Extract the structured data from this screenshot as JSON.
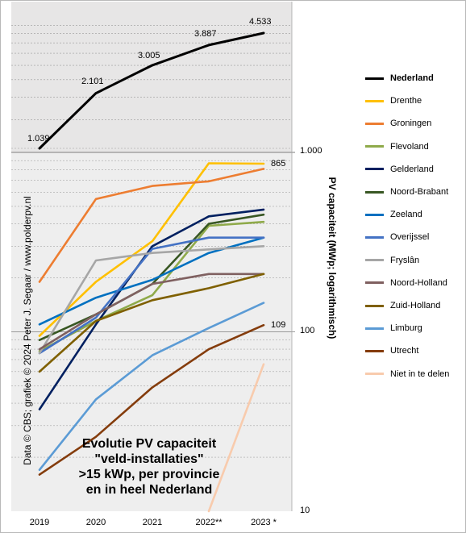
{
  "chart_data": {
    "type": "line",
    "title": [
      "Evolutie  PV capaciteit",
      "\"veld-installaties\"",
      ">15 kWp, per provincie",
      "en in  heel Nederland"
    ],
    "source": "Data © CBS;  grafiek © 2024 Peter J. Segaar / www.polderpv.nl",
    "ylabel": "PV capaciteit  (MWp; logarithmisch)",
    "yscale": "log",
    "y_ticks": [
      "10",
      "100",
      "1.000"
    ],
    "x": [
      "2019",
      "2020",
      "2021",
      "2022**",
      "2023 *"
    ],
    "grid": true,
    "legend_position": "right",
    "panels": [
      {
        "name": "top",
        "series_names": [
          "Nederland"
        ],
        "point_labels": [
          "1.039",
          "2.101",
          "3.005",
          "3.887",
          "4.533"
        ]
      },
      {
        "name": "bottom",
        "ylim": [
          10,
          1000
        ],
        "end_labels": {
          "Drenthe": "865",
          "Utrecht": "109"
        }
      }
    ],
    "series": [
      {
        "name": "Nederland",
        "color": "#000000",
        "bold": true,
        "panel": "top",
        "values": [
          1039,
          2101,
          3005,
          3887,
          4533
        ]
      },
      {
        "name": "Drenthe",
        "color": "#ffc000",
        "values": [
          95,
          190,
          320,
          870,
          865
        ]
      },
      {
        "name": "Groningen",
        "color": "#ed7d31",
        "values": [
          190,
          550,
          650,
          690,
          810
        ]
      },
      {
        "name": "Flevoland",
        "color": "#8faa4a",
        "values": [
          78,
          115,
          160,
          390,
          410
        ]
      },
      {
        "name": "Gelderland",
        "color": "#002060",
        "values": [
          37,
          110,
          300,
          440,
          480
        ]
      },
      {
        "name": "Noord-Brabant",
        "color": "#385723",
        "values": [
          90,
          125,
          185,
          400,
          450
        ]
      },
      {
        "name": "Zeeland",
        "color": "#0070c0",
        "values": [
          110,
          155,
          195,
          275,
          335
        ]
      },
      {
        "name": "Overijssel",
        "color": "#4472c4",
        "values": [
          76,
          120,
          290,
          335,
          335
        ]
      },
      {
        "name": "Fryslân",
        "color": "#a6a6a6",
        "values": [
          76,
          250,
          275,
          288,
          300
        ]
      },
      {
        "name": "Noord-Holland",
        "color": "#7f6060",
        "values": [
          80,
          125,
          185,
          210,
          210
        ]
      },
      {
        "name": "Zuid-Holland",
        "color": "#7f6000",
        "values": [
          60,
          115,
          150,
          175,
          210
        ]
      },
      {
        "name": "Limburg",
        "color": "#5b9bd5",
        "values": [
          17,
          42,
          74,
          105,
          145
        ]
      },
      {
        "name": "Utrecht",
        "color": "#843c0c",
        "values": [
          16,
          26,
          49,
          80,
          109
        ]
      },
      {
        "name": "Niet in te delen",
        "color": "#f8cbad",
        "values": [
          null,
          null,
          null,
          10,
          66
        ]
      }
    ]
  }
}
